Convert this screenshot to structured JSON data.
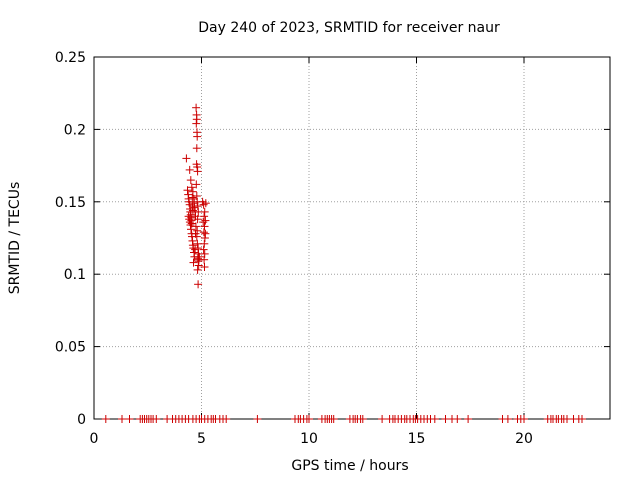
{
  "chart_data": {
    "type": "scatter",
    "title": "Day 240 of 2023, SRMTID for receiver naur",
    "xlabel": "GPS time / hours",
    "ylabel": "SRMTID / TECUs",
    "xlim": [
      0,
      24
    ],
    "ylim": [
      0,
      0.25
    ],
    "x_ticks": [
      0,
      5,
      10,
      15,
      20
    ],
    "x_tick_labels": [
      "0",
      "5",
      "10",
      "15",
      "20"
    ],
    "y_ticks": [
      0,
      0.05,
      0.1,
      0.15,
      0.2,
      0.25
    ],
    "y_tick_labels": [
      "0",
      "0.05",
      "0.1",
      "0.15",
      "0.2",
      "0.25"
    ],
    "grid": true,
    "marker": "+",
    "marker_color": "#cc0000",
    "series": [
      {
        "points": [
          [
            4.3,
            0.18
          ],
          [
            4.35,
            0.158
          ],
          [
            4.38,
            0.155
          ],
          [
            4.4,
            0.152
          ],
          [
            4.42,
            0.15
          ],
          [
            4.45,
            0.148
          ],
          [
            4.47,
            0.145
          ],
          [
            4.48,
            0.143
          ],
          [
            4.5,
            0.141
          ],
          [
            4.52,
            0.139
          ],
          [
            4.53,
            0.137
          ],
          [
            4.55,
            0.135
          ],
          [
            4.57,
            0.153
          ],
          [
            4.58,
            0.147
          ],
          [
            4.6,
            0.144
          ],
          [
            4.4,
            0.14
          ],
          [
            4.43,
            0.138
          ],
          [
            4.46,
            0.136
          ],
          [
            4.49,
            0.134
          ],
          [
            4.51,
            0.131
          ],
          [
            4.54,
            0.128
          ],
          [
            4.56,
            0.126
          ],
          [
            4.58,
            0.123
          ],
          [
            4.6,
            0.12
          ],
          [
            4.62,
            0.118
          ],
          [
            4.45,
            0.172
          ],
          [
            4.5,
            0.165
          ],
          [
            4.55,
            0.16
          ],
          [
            4.6,
            0.157
          ],
          [
            4.64,
            0.152
          ],
          [
            4.66,
            0.149
          ],
          [
            4.68,
            0.146
          ],
          [
            4.7,
            0.143
          ],
          [
            4.72,
            0.14
          ],
          [
            4.63,
            0.108
          ],
          [
            4.65,
            0.115
          ],
          [
            4.67,
            0.112
          ],
          [
            4.7,
            0.117
          ],
          [
            4.72,
            0.128
          ],
          [
            4.74,
            0.133
          ],
          [
            4.75,
            0.215
          ],
          [
            4.77,
            0.21
          ],
          [
            4.78,
            0.207
          ],
          [
            4.76,
            0.204
          ],
          [
            4.79,
            0.198
          ],
          [
            4.8,
            0.195
          ],
          [
            4.78,
            0.187
          ],
          [
            4.77,
            0.176
          ],
          [
            4.8,
            0.174
          ],
          [
            4.82,
            0.171
          ],
          [
            4.76,
            0.162
          ],
          [
            4.78,
            0.154
          ],
          [
            4.8,
            0.15
          ],
          [
            4.83,
            0.147
          ],
          [
            4.85,
            0.143
          ],
          [
            4.82,
            0.138
          ],
          [
            4.8,
            0.13
          ],
          [
            4.78,
            0.126
          ],
          [
            4.81,
            0.121
          ],
          [
            4.84,
            0.118
          ],
          [
            4.86,
            0.114
          ],
          [
            4.83,
            0.111
          ],
          [
            4.85,
            0.109
          ],
          [
            4.87,
            0.106
          ],
          [
            4.82,
            0.103
          ],
          [
            4.84,
            0.093
          ],
          [
            4.88,
            0.11
          ],
          [
            4.9,
            0.112
          ],
          [
            5.05,
            0.15
          ],
          [
            5.1,
            0.148
          ],
          [
            5.15,
            0.143
          ],
          [
            5.12,
            0.14
          ],
          [
            5.08,
            0.136
          ],
          [
            5.14,
            0.133
          ],
          [
            5.11,
            0.129
          ],
          [
            5.16,
            0.125
          ],
          [
            5.13,
            0.121
          ],
          [
            5.1,
            0.117
          ],
          [
            5.15,
            0.114
          ],
          [
            5.12,
            0.11
          ],
          [
            5.14,
            0.105
          ],
          [
            5.18,
            0.137
          ],
          [
            5.2,
            0.149
          ],
          [
            5.18,
            0.128
          ]
        ]
      },
      {
        "points": [
          [
            0.55,
            0
          ],
          [
            1.3,
            0
          ],
          [
            1.65,
            0
          ],
          [
            2.15,
            0
          ],
          [
            2.25,
            0
          ],
          [
            2.35,
            0
          ],
          [
            2.45,
            0
          ],
          [
            2.55,
            0
          ],
          [
            2.65,
            0
          ],
          [
            2.75,
            0
          ],
          [
            2.9,
            0
          ],
          [
            3.4,
            0
          ],
          [
            3.65,
            0
          ],
          [
            3.8,
            0
          ],
          [
            3.95,
            0
          ],
          [
            4.1,
            0
          ],
          [
            4.25,
            0
          ],
          [
            4.4,
            0
          ],
          [
            4.6,
            0
          ],
          [
            4.75,
            0
          ],
          [
            4.9,
            0
          ],
          [
            5.0,
            0
          ],
          [
            5.15,
            0
          ],
          [
            5.3,
            0
          ],
          [
            5.45,
            0
          ],
          [
            5.55,
            0
          ],
          [
            5.65,
            0
          ],
          [
            5.85,
            0
          ],
          [
            6.0,
            0
          ],
          [
            6.15,
            0
          ],
          [
            7.6,
            0
          ],
          [
            9.35,
            0
          ],
          [
            9.5,
            0
          ],
          [
            9.6,
            0
          ],
          [
            9.75,
            0
          ],
          [
            9.9,
            0
          ],
          [
            10.0,
            0
          ],
          [
            10.6,
            0
          ],
          [
            10.75,
            0
          ],
          [
            10.85,
            0
          ],
          [
            10.95,
            0
          ],
          [
            11.05,
            0
          ],
          [
            11.15,
            0
          ],
          [
            11.9,
            0
          ],
          [
            12.05,
            0
          ],
          [
            12.15,
            0
          ],
          [
            12.25,
            0
          ],
          [
            12.4,
            0
          ],
          [
            12.5,
            0
          ],
          [
            13.4,
            0
          ],
          [
            13.75,
            0
          ],
          [
            13.9,
            0
          ],
          [
            14.0,
            0
          ],
          [
            14.15,
            0
          ],
          [
            14.3,
            0
          ],
          [
            14.45,
            0
          ],
          [
            14.55,
            0
          ],
          [
            14.7,
            0
          ],
          [
            14.85,
            0
          ],
          [
            14.95,
            0
          ],
          [
            15.05,
            0
          ],
          [
            15.2,
            0
          ],
          [
            15.35,
            0
          ],
          [
            15.5,
            0
          ],
          [
            15.65,
            0
          ],
          [
            15.85,
            0
          ],
          [
            16.35,
            0
          ],
          [
            16.65,
            0
          ],
          [
            16.9,
            0
          ],
          [
            17.4,
            0
          ],
          [
            19.0,
            0
          ],
          [
            19.25,
            0
          ],
          [
            19.7,
            0
          ],
          [
            19.85,
            0
          ],
          [
            20.0,
            0
          ],
          [
            21.1,
            0
          ],
          [
            21.25,
            0
          ],
          [
            21.35,
            0
          ],
          [
            21.5,
            0
          ],
          [
            21.6,
            0
          ],
          [
            21.75,
            0
          ],
          [
            21.85,
            0
          ],
          [
            22.0,
            0
          ],
          [
            22.3,
            0
          ],
          [
            22.55,
            0
          ],
          [
            22.7,
            0
          ]
        ]
      }
    ]
  }
}
